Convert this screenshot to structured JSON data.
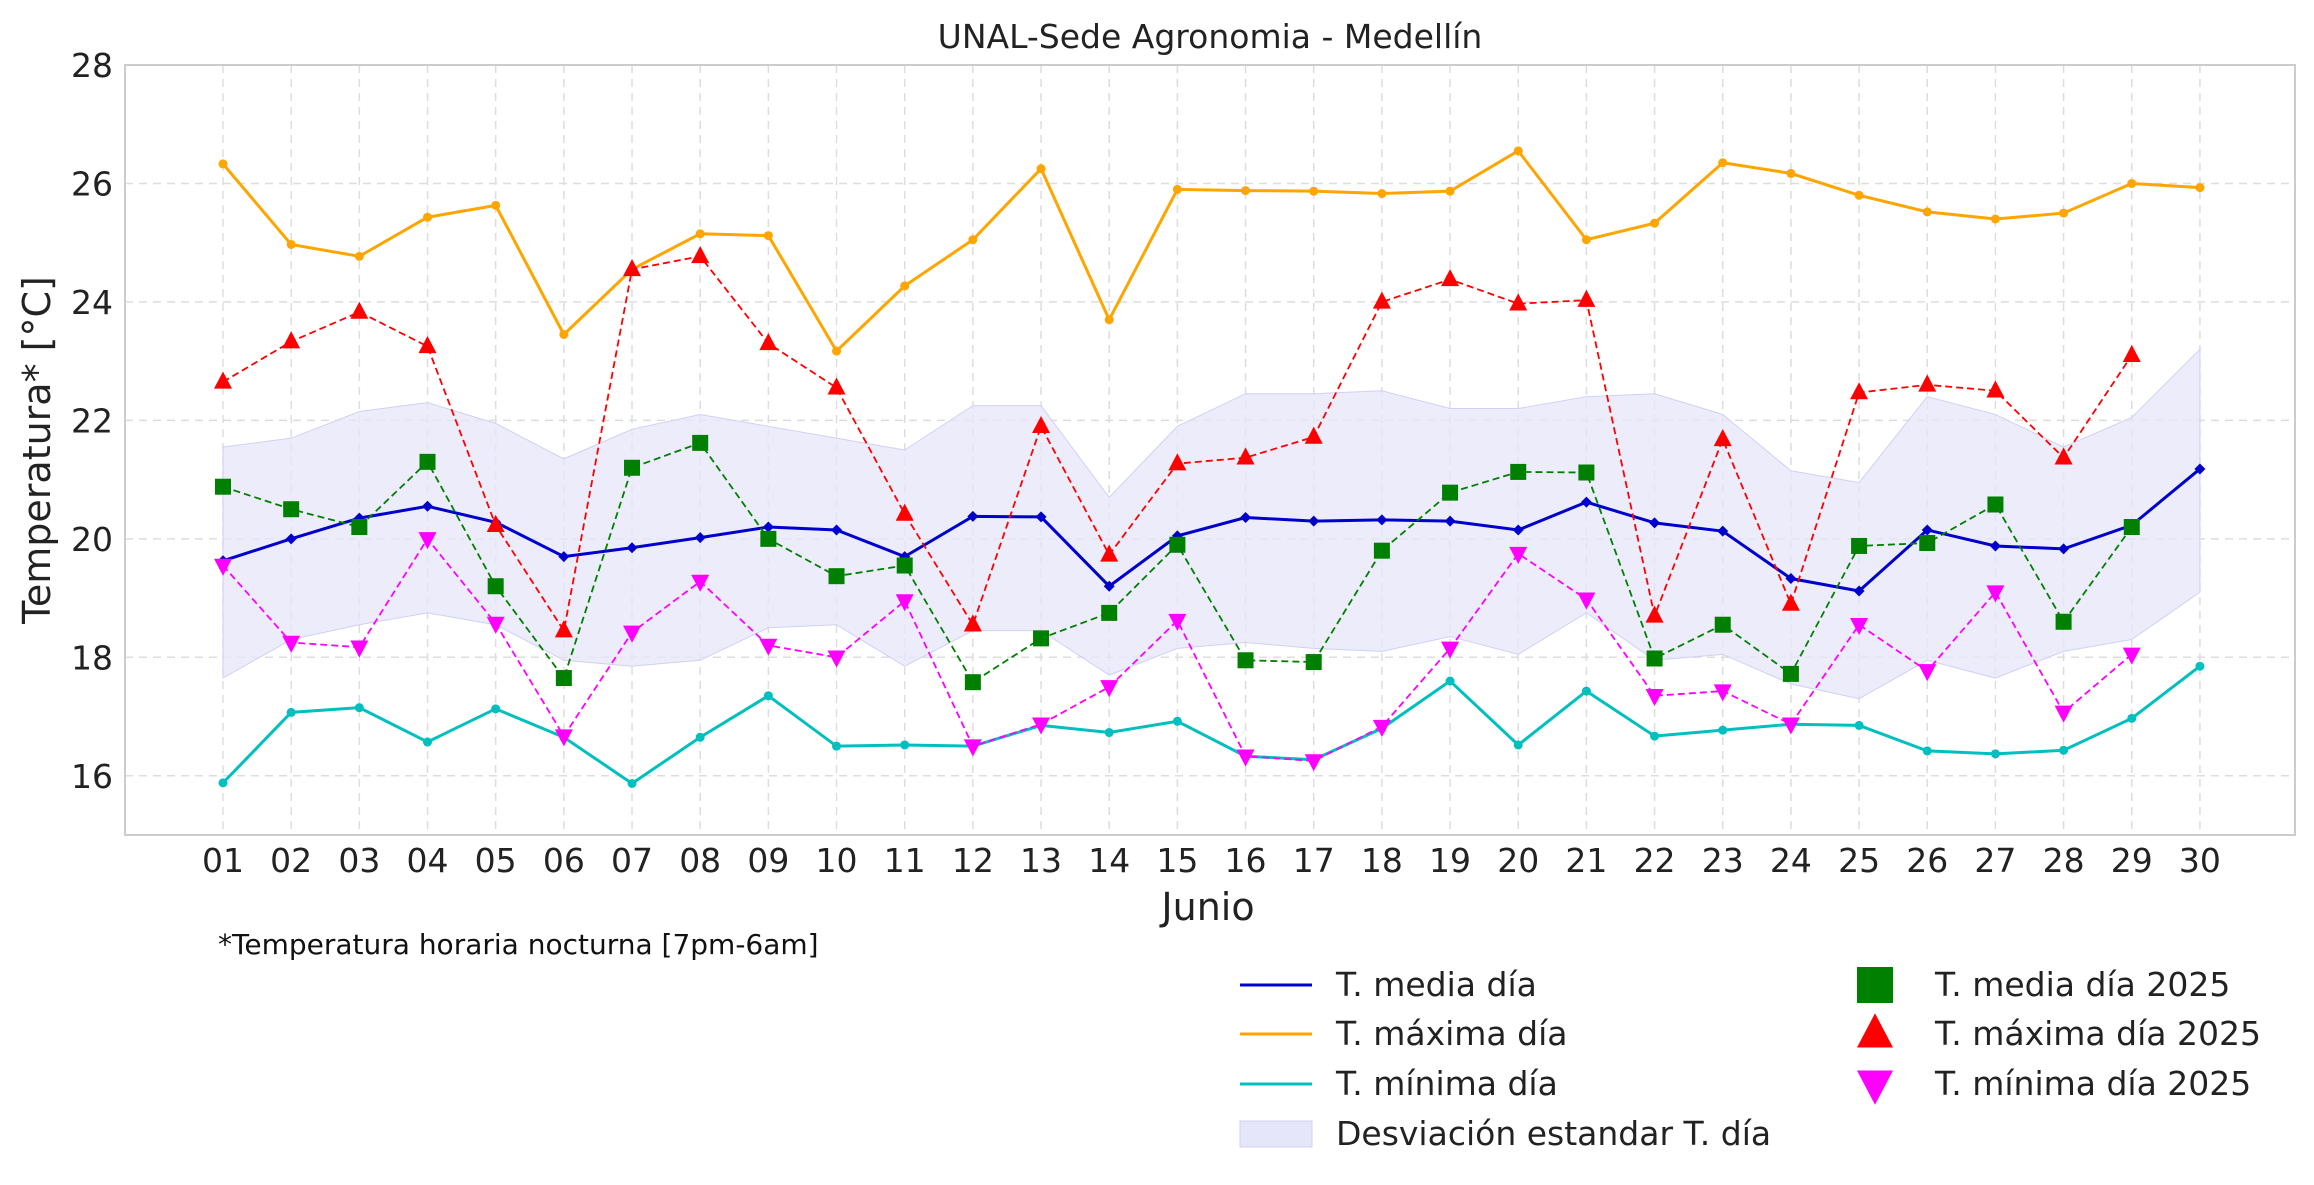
{
  "chart_data": {
    "type": "line",
    "title": "UNAL-Sede Agronomia - Medellín",
    "xlabel": "Junio",
    "ylabel": "Temperatura* [°C]",
    "note": "*Temperatura horaria nocturna [7pm-6am]",
    "categories": [
      "01",
      "02",
      "03",
      "04",
      "05",
      "06",
      "07",
      "08",
      "09",
      "10",
      "11",
      "12",
      "13",
      "14",
      "15",
      "16",
      "17",
      "18",
      "19",
      "20",
      "21",
      "22",
      "23",
      "24",
      "25",
      "26",
      "27",
      "28",
      "29",
      "30"
    ],
    "ylim": [
      15,
      28
    ],
    "yticks": [
      "16",
      "18",
      "20",
      "22",
      "24",
      "26",
      "28"
    ],
    "grid": true,
    "legend_position": "bottom-right",
    "band": {
      "name": "Desviación estandar T. día",
      "color": "#e6e6fa",
      "upper": [
        21.55,
        21.7,
        22.15,
        22.3,
        21.95,
        21.35,
        21.85,
        22.1,
        21.9,
        21.7,
        21.5,
        22.25,
        22.25,
        20.7,
        21.9,
        22.45,
        22.45,
        22.5,
        22.2,
        22.2,
        22.4,
        22.45,
        22.1,
        21.15,
        20.95,
        22.4,
        22.1,
        21.55,
        22.05,
        23.2
      ],
      "lower": [
        17.65,
        18.3,
        18.55,
        18.75,
        18.55,
        17.95,
        17.85,
        17.95,
        18.5,
        18.55,
        17.85,
        18.45,
        18.45,
        17.7,
        18.15,
        18.25,
        18.15,
        18.1,
        18.35,
        18.05,
        18.75,
        17.95,
        18.05,
        17.55,
        17.3,
        17.95,
        17.65,
        18.1,
        18.3,
        19.1
      ]
    },
    "series": [
      {
        "name": "T. media día",
        "color": "#0000cd",
        "style": "solid",
        "marker": "diamond",
        "values": [
          19.63,
          20.0,
          20.35,
          20.55,
          20.28,
          19.7,
          19.85,
          20.02,
          20.2,
          20.15,
          19.7,
          20.38,
          20.37,
          19.2,
          20.05,
          20.36,
          20.3,
          20.32,
          20.3,
          20.15,
          20.62,
          20.27,
          20.13,
          19.33,
          19.12,
          20.15,
          19.88,
          19.83,
          20.23,
          21.18
        ]
      },
      {
        "name": "T. máxima día",
        "color": "#ffa500",
        "style": "solid",
        "marker": "circle",
        "values": [
          26.33,
          24.97,
          24.77,
          25.43,
          25.63,
          23.45,
          24.55,
          25.15,
          25.12,
          23.17,
          24.27,
          25.05,
          26.25,
          23.7,
          25.9,
          25.88,
          25.87,
          25.83,
          25.87,
          26.55,
          25.05,
          25.33,
          26.35,
          26.17,
          25.8,
          25.52,
          25.4,
          25.5,
          26.0,
          25.93
        ]
      },
      {
        "name": "T. mínima día",
        "color": "#00bfbf",
        "style": "solid",
        "marker": "circle",
        "values": [
          15.88,
          17.07,
          17.15,
          16.57,
          17.13,
          16.65,
          15.87,
          16.65,
          17.35,
          16.5,
          16.52,
          16.5,
          16.85,
          16.73,
          16.92,
          16.33,
          16.27,
          16.8,
          17.6,
          16.52,
          17.43,
          16.67,
          16.77,
          16.87,
          16.85,
          16.42,
          16.37,
          16.43,
          16.97,
          17.85
        ]
      },
      {
        "name": "T. media día 2025",
        "color": "#008000",
        "style": "dashed",
        "marker": "square",
        "values": [
          20.88,
          20.5,
          20.2,
          21.3,
          19.2,
          17.65,
          21.2,
          21.62,
          20.0,
          19.37,
          19.55,
          17.58,
          18.32,
          18.75,
          19.9,
          17.95,
          17.92,
          19.8,
          20.78,
          21.13,
          21.12,
          17.98,
          18.55,
          17.72,
          19.88,
          19.93,
          20.58,
          18.6,
          20.2,
          null
        ]
      },
      {
        "name": "T. máxima día 2025",
        "color": "#ff0000",
        "style": "dashed",
        "marker": "triangle-up",
        "values": [
          22.65,
          23.33,
          23.83,
          23.25,
          20.23,
          18.45,
          24.55,
          24.77,
          23.3,
          22.55,
          20.42,
          18.55,
          21.9,
          19.73,
          21.27,
          21.37,
          21.72,
          24.0,
          24.38,
          23.97,
          24.03,
          18.7,
          21.68,
          18.9,
          22.47,
          22.6,
          22.5,
          21.37,
          23.1,
          null
        ]
      },
      {
        "name": "T. mínima día 2025",
        "color": "#ff00ff",
        "style": "dashed",
        "marker": "triangle-down",
        "values": [
          19.55,
          18.25,
          18.17,
          20.0,
          18.57,
          16.67,
          18.42,
          19.28,
          18.2,
          18.0,
          18.95,
          16.5,
          16.87,
          17.5,
          18.62,
          16.33,
          16.25,
          16.83,
          18.15,
          19.75,
          18.98,
          17.35,
          17.43,
          16.87,
          18.55,
          17.77,
          19.1,
          17.07,
          18.05,
          null
        ]
      }
    ]
  }
}
